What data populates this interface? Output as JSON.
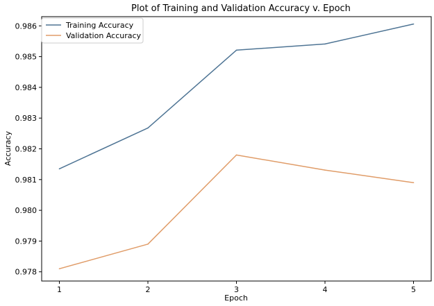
{
  "chart_data": {
    "type": "line",
    "title": "Plot of Training and Validation Accuracy v. Epoch",
    "xlabel": "Epoch",
    "ylabel": "Accuracy",
    "x": [
      1,
      2,
      3,
      4,
      5
    ],
    "xticks": [
      "1",
      "2",
      "3",
      "4",
      "5"
    ],
    "yticks": [
      "0.978",
      "0.979",
      "0.980",
      "0.981",
      "0.982",
      "0.983",
      "0.984",
      "0.985",
      "0.986"
    ],
    "ylim": [
      0.9777,
      0.9863
    ],
    "xlim": [
      0.8,
      5.2
    ],
    "grid": false,
    "legend_position": "top-left",
    "series": [
      {
        "name": "Training Accuracy",
        "color": "#4e7494",
        "values": [
          0.98135,
          0.98268,
          0.98521,
          0.98541,
          0.98606
        ]
      },
      {
        "name": "Validation Accuracy",
        "color": "#e09c68",
        "values": [
          0.9781,
          0.9789,
          0.9818,
          0.98131,
          0.9809
        ]
      }
    ]
  }
}
